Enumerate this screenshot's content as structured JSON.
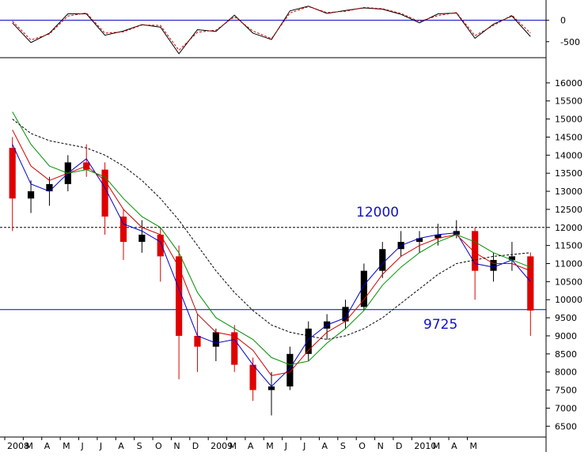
{
  "chart_data": [
    {
      "type": "line",
      "panel": "oscillator",
      "title": "",
      "ylim": [
        -800,
        400
      ],
      "y_ticks": [
        "0",
        "-500"
      ],
      "reference_line": 0,
      "colors": {
        "main": "#000000",
        "signal": "#d00000",
        "reference": "#0000cc"
      },
      "series": [
        {
          "role": "main",
          "x": [
            "2008-01",
            "2008-02",
            "2008-03",
            "2008-04",
            "2008-05",
            "2008-06",
            "2008-07",
            "2008-08",
            "2008-09",
            "2008-10",
            "2008-11",
            "2008-12",
            "2009-01",
            "2009-02",
            "2009-03",
            "2009-04",
            "2009-05",
            "2009-06",
            "2009-07",
            "2009-08",
            "2009-09",
            "2009-10",
            "2009-11",
            "2009-12",
            "2010-01",
            "2010-02",
            "2010-03",
            "2010-04",
            "2010-05"
          ],
          "values": [
            -60,
            -520,
            -300,
            150,
            150,
            -350,
            -250,
            -100,
            -160,
            -780,
            -220,
            -260,
            120,
            -300,
            -450,
            220,
            330,
            160,
            230,
            290,
            260,
            140,
            -60,
            150,
            170,
            -420,
            -90,
            100,
            -380
          ]
        },
        {
          "role": "signal",
          "x": [
            "2008-01",
            "2008-02",
            "2008-03",
            "2008-04",
            "2008-05",
            "2008-06",
            "2008-07",
            "2008-08",
            "2008-09",
            "2008-10",
            "2008-11",
            "2008-12",
            "2009-01",
            "2009-02",
            "2009-03",
            "2009-04",
            "2009-05",
            "2009-06",
            "2009-07",
            "2009-08",
            "2009-09",
            "2009-10",
            "2009-11",
            "2009-12",
            "2010-01",
            "2010-02",
            "2010-03",
            "2010-04",
            "2010-05"
          ],
          "values": [
            -20,
            -460,
            -320,
            100,
            170,
            -300,
            -270,
            -110,
            -120,
            -700,
            -280,
            -230,
            80,
            -250,
            -430,
            170,
            320,
            180,
            210,
            300,
            270,
            160,
            -30,
            110,
            180,
            -360,
            -120,
            120,
            -300
          ]
        }
      ]
    },
    {
      "type": "candlestick",
      "panel": "price",
      "title": "",
      "xlabel": "",
      "ylabel": "",
      "ylim": [
        6200,
        16500
      ],
      "y_ticks": [
        "6500",
        "7000",
        "7500",
        "8000",
        "8500",
        "9000",
        "9500",
        "10000",
        "10500",
        "11000",
        "11500",
        "12000",
        "12500",
        "13000",
        "13500",
        "14000",
        "14500",
        "15000",
        "15500",
        "16000"
      ],
      "x_ticks": [
        "2008",
        "M",
        "A",
        "M",
        "J",
        "J",
        "A",
        "S",
        "O",
        "N",
        "D",
        "2009",
        "M",
        "A",
        "M",
        "J",
        "J",
        "A",
        "S",
        "O",
        "N",
        "D",
        "2010",
        "M",
        "A",
        "M"
      ],
      "grid": false,
      "legend": "none",
      "annotations": [
        {
          "text": "12000",
          "value": 12000,
          "color": "#0000cc",
          "line": "dashed"
        },
        {
          "text": "9725",
          "value": 9725,
          "color": "#0000cc",
          "line": "solid"
        }
      ],
      "colors": {
        "up": "#000000",
        "down": "#e00000",
        "ma_fast": "#0000cc",
        "ma_mid": "#d00000",
        "ma_slow": "#009000",
        "ma_long": "#000000"
      },
      "x": [
        "2008-01",
        "2008-02",
        "2008-03",
        "2008-04",
        "2008-05",
        "2008-06",
        "2008-07",
        "2008-08",
        "2008-09",
        "2008-10",
        "2008-11",
        "2008-12",
        "2009-01",
        "2009-02",
        "2009-03",
        "2009-04",
        "2009-05",
        "2009-06",
        "2009-07",
        "2009-08",
        "2009-09",
        "2009-10",
        "2009-11",
        "2009-12",
        "2010-01",
        "2010-02",
        "2010-03",
        "2010-04",
        "2010-05"
      ],
      "ohlc": [
        [
          14200,
          14500,
          11900,
          12800
        ],
        [
          12800,
          13300,
          12400,
          13000
        ],
        [
          13000,
          13400,
          12600,
          13200
        ],
        [
          13200,
          14000,
          13000,
          13800
        ],
        [
          13800,
          14300,
          13400,
          13600
        ],
        [
          13600,
          13800,
          11800,
          12300
        ],
        [
          12300,
          12500,
          11100,
          11600
        ],
        [
          11600,
          12200,
          11300,
          11800
        ],
        [
          11800,
          12000,
          10500,
          11200
        ],
        [
          11200,
          11500,
          7800,
          9000
        ],
        [
          9000,
          9600,
          8000,
          8700
        ],
        [
          8700,
          9200,
          8300,
          9100
        ],
        [
          9100,
          9300,
          8000,
          8200
        ],
        [
          8200,
          8400,
          7200,
          7500
        ],
        [
          7500,
          8000,
          6800,
          7600
        ],
        [
          7600,
          8700,
          7500,
          8500
        ],
        [
          8500,
          9400,
          8300,
          9200
        ],
        [
          9200,
          9600,
          8900,
          9400
        ],
        [
          9400,
          10000,
          9200,
          9800
        ],
        [
          9800,
          11000,
          9700,
          10800
        ],
        [
          10800,
          11600,
          10600,
          11400
        ],
        [
          11400,
          11900,
          11200,
          11600
        ],
        [
          11600,
          11900,
          11300,
          11700
        ],
        [
          11700,
          12100,
          11500,
          11800
        ],
        [
          11800,
          12200,
          11700,
          11900
        ],
        [
          11900,
          12000,
          10000,
          10800
        ],
        [
          10800,
          11300,
          10500,
          11100
        ],
        [
          11100,
          11600,
          10800,
          11200
        ],
        [
          11200,
          11300,
          9000,
          9700
        ]
      ],
      "series": [
        {
          "role": "ma_fast",
          "values": [
            14300,
            13200,
            13000,
            13500,
            13900,
            13100,
            12100,
            11900,
            11600,
            10300,
            9000,
            8800,
            8900,
            8200,
            7600,
            8100,
            8900,
            9300,
            9500,
            10400,
            11000,
            11500,
            11700,
            11800,
            11850,
            11000,
            10900,
            11100,
            10500
          ]
        },
        {
          "role": "ma_mid",
          "values": [
            14700,
            13700,
            13300,
            13500,
            13700,
            13300,
            12500,
            12000,
            11800,
            10900,
            9600,
            9100,
            9000,
            8600,
            7900,
            8000,
            8600,
            9100,
            9400,
            10000,
            10700,
            11200,
            11500,
            11700,
            11800,
            11300,
            11000,
            11000,
            10800
          ]
        },
        {
          "role": "ma_slow",
          "values": [
            15200,
            14300,
            13700,
            13500,
            13600,
            13400,
            12800,
            12300,
            12000,
            11300,
            10200,
            9500,
            9200,
            8900,
            8400,
            8200,
            8300,
            8800,
            9200,
            9700,
            10400,
            10900,
            11300,
            11600,
            11800,
            11600,
            11300,
            11100,
            10900
          ]
        },
        {
          "role": "ma_long",
          "values": [
            15000,
            14600,
            14400,
            14300,
            14200,
            14000,
            13700,
            13300,
            12800,
            12200,
            11500,
            10800,
            10200,
            9700,
            9300,
            9100,
            9000,
            8900,
            9000,
            9200,
            9500,
            9900,
            10300,
            10700,
            11000,
            11100,
            11200,
            11250,
            11300
          ]
        }
      ]
    }
  ]
}
